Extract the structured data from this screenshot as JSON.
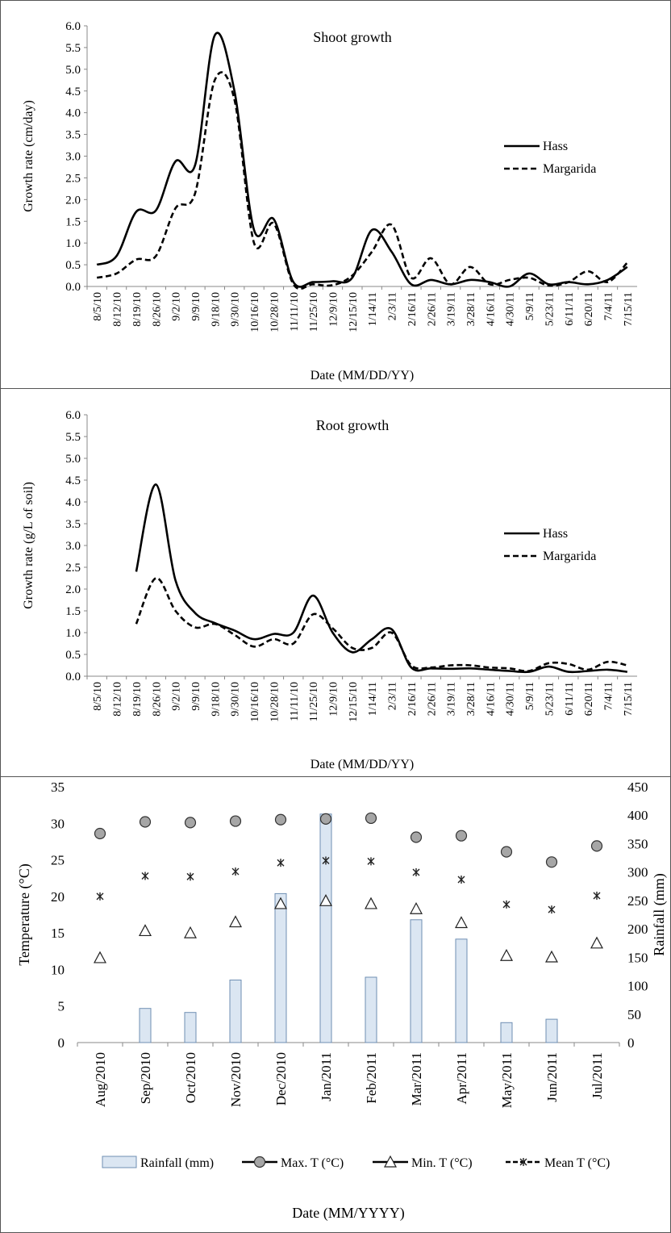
{
  "chart_data": [
    {
      "type": "line",
      "title": "Shoot growth",
      "xlabel": "Date (MM/DD/YY)",
      "ylabel": "Growth rate (cm/day)",
      "ylim": [
        0,
        6
      ],
      "yticks": [
        "0.0",
        "0.5",
        "1.0",
        "1.5",
        "2.0",
        "2.5",
        "3.0",
        "3.5",
        "4.0",
        "4.5",
        "5.0",
        "5.5",
        "6.0"
      ],
      "categories": [
        "8/5/10",
        "8/12/10",
        "8/19/10",
        "8/26/10",
        "9/2/10",
        "9/9/10",
        "9/18/10",
        "9/30/10",
        "10/16/10",
        "10/28/10",
        "11/11/10",
        "11/25/10",
        "12/9/10",
        "12/15/10",
        "1/14/11",
        "2/3/11",
        "2/16/11",
        "2/26/11",
        "3/19/11",
        "3/28/11",
        "4/16/11",
        "4/30/11",
        "5/9/11",
        "5/23/11",
        "6/11/11",
        "6/20/11",
        "7/4/11",
        "7/15/11"
      ],
      "legend_position": "right",
      "grid": false,
      "series": [
        {
          "name": "Hass",
          "style": "solid",
          "values": [
            0.5,
            0.7,
            1.72,
            1.75,
            2.88,
            2.8,
            5.78,
            4.5,
            1.3,
            1.55,
            0.1,
            0.1,
            0.12,
            0.2,
            1.3,
            0.8,
            0.05,
            0.15,
            0.05,
            0.15,
            0.1,
            0.0,
            0.3,
            0.05,
            0.1,
            0.05,
            0.15,
            0.45
          ]
        },
        {
          "name": "Margarida",
          "style": "dashed",
          "values": [
            0.2,
            0.3,
            0.62,
            0.7,
            1.8,
            2.15,
            4.75,
            4.3,
            1.0,
            1.45,
            0.05,
            0.05,
            0.03,
            0.25,
            0.8,
            1.42,
            0.2,
            0.65,
            0.05,
            0.45,
            0.05,
            0.15,
            0.2,
            0.02,
            0.1,
            0.35,
            0.1,
            0.55
          ]
        }
      ]
    },
    {
      "type": "line",
      "title": "Root growth",
      "xlabel": "Date (MM/DD/YY)",
      "ylabel": "Growth rate (g/L of soil)",
      "ylim": [
        0,
        6
      ],
      "yticks": [
        "0.0",
        "0.5",
        "1.0",
        "1.5",
        "2.0",
        "2.5",
        "3.0",
        "3.5",
        "4.0",
        "4.5",
        "5.0",
        "5.5",
        "6.0"
      ],
      "categories": [
        "8/5/10",
        "8/12/10",
        "8/19/10",
        "8/26/10",
        "9/2/10",
        "9/9/10",
        "9/18/10",
        "9/30/10",
        "10/16/10",
        "10/28/10",
        "11/11/10",
        "11/25/10",
        "12/9/10",
        "12/15/10",
        "1/14/11",
        "2/3/11",
        "2/16/11",
        "2/26/11",
        "3/19/11",
        "3/28/11",
        "4/16/11",
        "4/30/11",
        "5/9/11",
        "5/23/11",
        "6/11/11",
        "6/20/11",
        "7/4/11",
        "7/15/11"
      ],
      "legend_position": "right",
      "grid": false,
      "series": [
        {
          "name": "Hass",
          "style": "solid",
          "values": [
            null,
            null,
            2.4,
            4.4,
            2.2,
            1.45,
            1.22,
            1.05,
            0.85,
            0.97,
            1.0,
            1.85,
            1.0,
            0.55,
            0.85,
            1.08,
            0.2,
            0.18,
            0.17,
            0.18,
            0.15,
            0.12,
            0.1,
            0.22,
            0.1,
            0.12,
            0.15,
            0.1
          ]
        },
        {
          "name": "Margarida",
          "style": "dashed",
          "values": [
            null,
            null,
            1.2,
            2.25,
            1.5,
            1.12,
            1.2,
            0.95,
            0.68,
            0.85,
            0.75,
            1.42,
            1.1,
            0.65,
            0.65,
            1.0,
            0.25,
            0.2,
            0.25,
            0.25,
            0.2,
            0.18,
            0.12,
            0.3,
            0.28,
            0.15,
            0.33,
            0.25
          ]
        }
      ]
    },
    {
      "type": "bar",
      "xlabel": "Date (MM/YYYY)",
      "ylabel": "Temperature (°C)",
      "y2label": "Rainfall (mm)",
      "ylim": [
        0,
        35
      ],
      "y2lim": [
        0,
        450
      ],
      "yticks": [
        "0",
        "5",
        "10",
        "15",
        "20",
        "25",
        "30",
        "35"
      ],
      "y2ticks": [
        "0",
        "50",
        "100",
        "150",
        "200",
        "250",
        "300",
        "350",
        "400",
        "450"
      ],
      "categories": [
        "Aug/2010",
        "Sep/2010",
        "Oct/2010",
        "Nov/2010",
        "Dec/2010",
        "Jan/2011",
        "Feb/2011",
        "Mar/2011",
        "Apr/2011",
        "May/2011",
        "Jun/2011",
        "Jul/2011"
      ],
      "legend_position": "bottom",
      "grid": false,
      "series": [
        {
          "name": "Rainfall (mm)",
          "axis": "right",
          "marker": "bar",
          "values": [
            0,
            60,
            53,
            110,
            262,
            402,
            115,
            216,
            182,
            35,
            41,
            0
          ]
        },
        {
          "name": "Max. T (°C)",
          "axis": "left",
          "marker": "circle",
          "values": [
            28.6,
            30.2,
            30.1,
            30.3,
            30.5,
            30.6,
            30.7,
            28.1,
            28.3,
            26.1,
            24.7,
            26.9
          ]
        },
        {
          "name": "Min. T (°C)",
          "axis": "left",
          "marker": "triangle",
          "values": [
            11.6,
            15.3,
            15.0,
            16.5,
            19.0,
            19.4,
            19.0,
            18.3,
            16.4,
            11.9,
            11.7,
            13.6
          ]
        },
        {
          "name": "Mean T (°C)",
          "axis": "left",
          "marker": "star",
          "values": [
            20.0,
            22.8,
            22.7,
            23.4,
            24.6,
            24.9,
            24.8,
            23.3,
            22.3,
            18.9,
            18.2,
            20.1
          ]
        }
      ],
      "colors": {
        "bar_fill": "#dbe6f2",
        "bar_stroke": "#6f8fb3",
        "marker_fill": "#a6a6a6"
      }
    }
  ]
}
